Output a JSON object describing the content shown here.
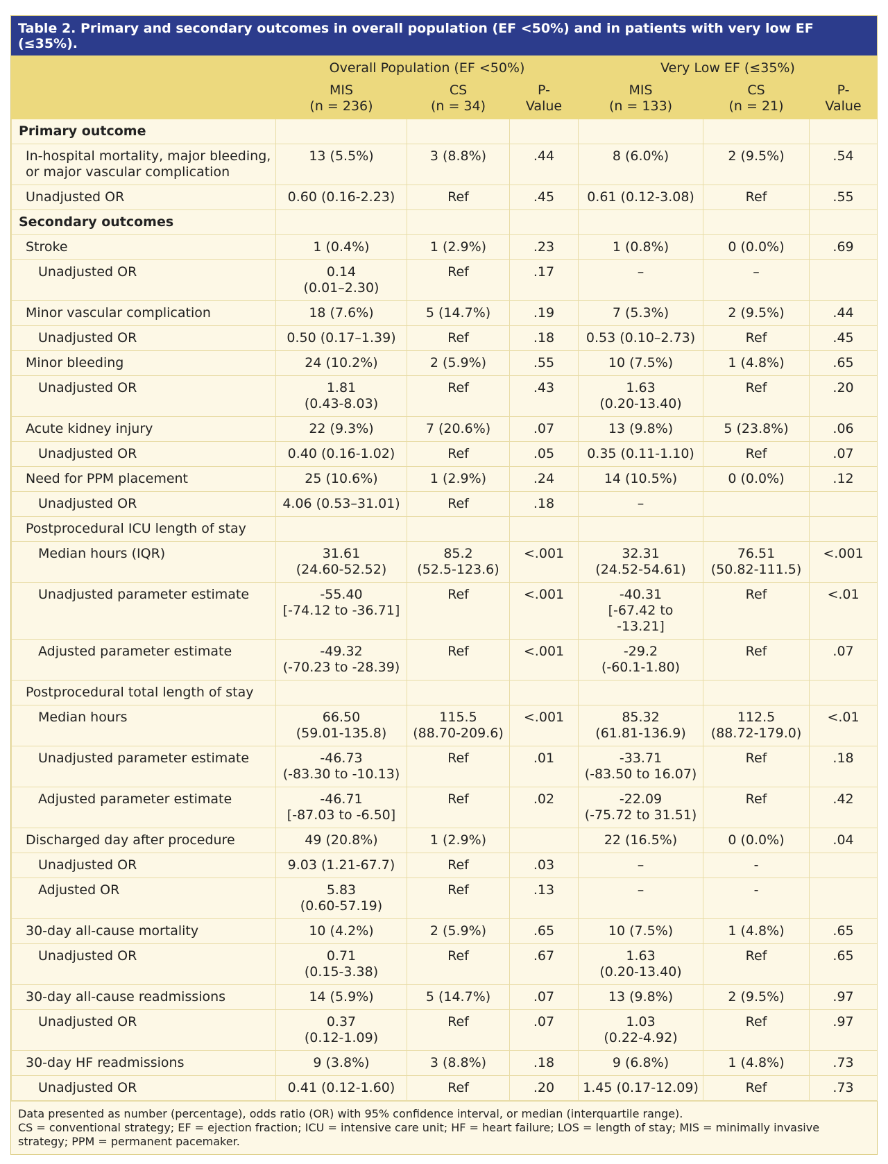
{
  "title": "Table 2. Primary and secondary outcomes in overall population (EF <50%) and in patients with very low EF (≤35%).",
  "header": {
    "groups": [
      "Overall Population (EF <50%)",
      "Very Low EF (≤35%)"
    ],
    "columns": [
      "MIS\n(n = 236)",
      "CS\n(n = 34)",
      "P-\nValue",
      "MIS\n(n = 133)",
      "CS\n(n = 21)",
      "P-\nValue"
    ]
  },
  "sections": [
    {
      "title": "Primary outcome",
      "rows": [
        {
          "label": "In-hospital mortality, major bleeding, or major vascular complication",
          "cells": [
            "13 (5.5%)",
            "3 (8.8%)",
            ".44",
            "8 (6.0%)",
            "2 (9.5%)",
            ".54"
          ]
        },
        {
          "label": "Unadjusted OR",
          "cells": [
            "0.60 (0.16-2.23)",
            "Ref",
            ".45",
            "0.61 (0.12-3.08)",
            "Ref",
            ".55"
          ]
        }
      ]
    },
    {
      "title": "Secondary outcomes",
      "rows": [
        {
          "label": "Stroke",
          "cells": [
            "1 (0.4%)",
            "1 (2.9%)",
            ".23",
            "1 (0.8%)",
            "0 (0.0%)",
            ".69"
          ],
          "sub": [
            {
              "label": "Unadjusted OR",
              "cells": [
                "0.14\n(0.01–2.30)",
                "Ref",
                ".17",
                "–",
                "–",
                null
              ]
            }
          ]
        },
        {
          "label": "Minor vascular complication",
          "cells": [
            "18 (7.6%)",
            "5 (14.7%)",
            ".19",
            "7 (5.3%)",
            "2 (9.5%)",
            ".44"
          ],
          "sub": [
            {
              "label": "Unadjusted OR",
              "cells": [
                "0.50 (0.17–1.39)",
                "Ref",
                ".18",
                "0.53 (0.10–2.73)",
                "Ref",
                ".45"
              ]
            }
          ]
        },
        {
          "label": "Minor bleeding",
          "cells": [
            "24 (10.2%)",
            "2 (5.9%)",
            ".55",
            "10 (7.5%)",
            "1 (4.8%)",
            ".65"
          ],
          "sub": [
            {
              "label": "Unadjusted OR",
              "cells": [
                "1.81\n(0.43-8.03)",
                "Ref",
                ".43",
                "1.63\n(0.20-13.40)",
                "Ref",
                ".20"
              ]
            }
          ]
        },
        {
          "label": "Acute kidney injury",
          "cells": [
            "22 (9.3%)",
            "7 (20.6%)",
            ".07",
            "13 (9.8%)",
            "5 (23.8%)",
            ".06"
          ],
          "sub": [
            {
              "label": "Unadjusted OR",
              "cells": [
                "0.40 (0.16-1.02)",
                "Ref",
                ".05",
                "0.35 (0.11-1.10)",
                "Ref",
                ".07"
              ]
            }
          ]
        },
        {
          "label": "Need for PPM placement",
          "cells": [
            "25 (10.6%)",
            "1 (2.9%)",
            ".24",
            "14 (10.5%)",
            "0 (0.0%)",
            ".12"
          ],
          "sub": [
            {
              "label": "Unadjusted OR",
              "cells": [
                "4.06 (0.53–31.01)",
                "Ref",
                ".18",
                "–",
                null,
                null
              ]
            }
          ]
        },
        {
          "label": "Postprocedural ICU length of stay",
          "cells": null,
          "sub": [
            {
              "label": "Median hours (IQR)",
              "cells": [
                "31.61\n(24.60-52.52)",
                "85.2\n(52.5-123.6)",
                "<.001",
                "32.31\n(24.52-54.61)",
                "76.51\n(50.82-111.5)",
                "<.001"
              ]
            },
            {
              "label": "Unadjusted parameter estimate",
              "cells": [
                "-55.40\n[-74.12 to -36.71]",
                "Ref",
                "<.001",
                "-40.31\n[-67.42 to -13.21]",
                "Ref",
                "<.01"
              ]
            },
            {
              "label": "Adjusted parameter estimate",
              "cells": [
                "-49.32\n(-70.23 to -28.39)",
                "Ref",
                "<.001",
                "-29.2\n(-60.1-1.80)",
                "Ref",
                ".07"
              ]
            }
          ]
        },
        {
          "label": "Postprocedural total length of stay",
          "cells": null,
          "sub": [
            {
              "label": "Median hours",
              "cells": [
                "66.50\n(59.01-135.8)",
                "115.5\n(88.70-209.6)",
                "<.001",
                "85.32\n(61.81-136.9)",
                "112.5\n(88.72-179.0)",
                "<.01"
              ]
            },
            {
              "label": "Unadjusted parameter estimate",
              "cells": [
                "-46.73\n(-83.30 to -10.13)",
                "Ref",
                ".01",
                "-33.71\n(-83.50 to 16.07)",
                "Ref",
                ".18"
              ]
            },
            {
              "label": "Adjusted parameter estimate",
              "cells": [
                "-46.71\n[-87.03 to -6.50]",
                "Ref",
                ".02",
                "-22.09\n(-75.72 to 31.51)",
                "Ref",
                ".42"
              ]
            }
          ]
        },
        {
          "label": "Discharged day after procedure",
          "cells": [
            "49 (20.8%)",
            "1 (2.9%)",
            null,
            "22 (16.5%)",
            "0 (0.0%)",
            ".04"
          ],
          "sub": [
            {
              "label": "Unadjusted OR",
              "cells": [
                "9.03 (1.21-67.7)",
                "Ref",
                ".03",
                "–",
                "-",
                null
              ]
            },
            {
              "label": "Adjusted OR",
              "cells": [
                "5.83\n(0.60-57.19)",
                "Ref",
                ".13",
                "–",
                "-",
                null
              ]
            }
          ]
        },
        {
          "label": "30-day all-cause mortality",
          "cells": [
            "10 (4.2%)",
            "2 (5.9%)",
            ".65",
            "10 (7.5%)",
            "1 (4.8%)",
            ".65"
          ],
          "sub": [
            {
              "label": "Unadjusted OR",
              "cells": [
                "0.71\n(0.15-3.38)",
                "Ref",
                ".67",
                "1.63\n(0.20-13.40)",
                "Ref",
                ".65"
              ]
            }
          ]
        },
        {
          "label": "30-day all-cause readmissions",
          "cells": [
            "14 (5.9%)",
            "5 (14.7%)",
            ".07",
            "13 (9.8%)",
            "2 (9.5%)",
            ".97"
          ],
          "sub": [
            {
              "label": "Unadjusted OR",
              "cells": [
                "0.37\n(0.12-1.09)",
                "Ref",
                ".07",
                "1.03\n(0.22-4.92)",
                "Ref",
                ".97"
              ]
            }
          ]
        },
        {
          "label": "30-day HF readmissions",
          "cells": [
            "9 (3.8%)",
            "3 (8.8%)",
            ".18",
            "9 (6.8%)",
            "1 (4.8%)",
            ".73"
          ],
          "sub": [
            {
              "label": "Unadjusted OR",
              "cells": [
                "0.41 (0.12-1.60)",
                "Ref",
                ".20",
                "1.45 (0.17-12.09)",
                "Ref",
                ".73"
              ]
            }
          ]
        }
      ]
    }
  ],
  "footnotes": [
    "Data presented as number (percentage), odds ratio (OR) with 95% confidence interval, or median (interquartile range).",
    "CS = conventional strategy; EF = ejection fraction; ICU = intensive care unit; HF = heart failure; LOS = length of stay; MIS = minimally invasive strategy; PPM = permanent pacemaker."
  ]
}
